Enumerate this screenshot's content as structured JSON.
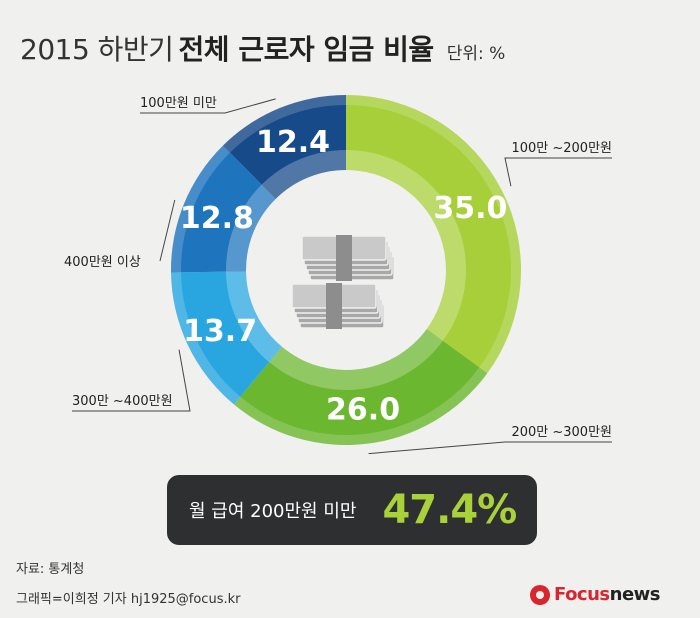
{
  "title": {
    "year_part": "2015 하반기",
    "main_part": "전체 근로자 임금 비율",
    "unit": "단위: %"
  },
  "chart_data": {
    "type": "pie",
    "variant": "donut",
    "title": "2015 하반기 전체 근로자 임금 비율",
    "unit": "%",
    "categories": [
      "100만 ~200만원",
      "200만 ~300만원",
      "300만 ~400만원",
      "400만원 이상",
      "100만원 미만"
    ],
    "values": [
      35.0,
      26.0,
      13.7,
      12.8,
      12.4
    ],
    "value_labels": [
      "35.0",
      "26.0",
      "13.7",
      "12.8",
      "12.4"
    ],
    "colors": [
      "#a6cf3a",
      "#6bb72f",
      "#29a6e0",
      "#1e75bd",
      "#174a88"
    ],
    "center_icon": "money-stack-icon"
  },
  "summary": {
    "label": "월 급여 200만원 미만",
    "value": "47.4%"
  },
  "footer": {
    "source": "자료: 통계청",
    "credit": "그래픽=이희정 기자 hj1925@focus.kr",
    "logo_part1": "Focus",
    "logo_part2": "news"
  }
}
